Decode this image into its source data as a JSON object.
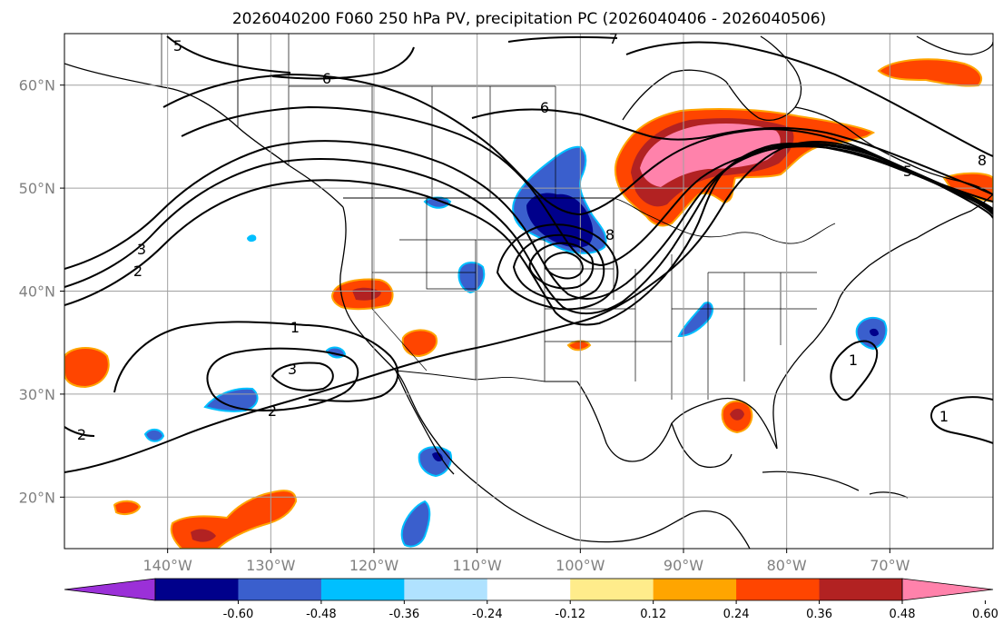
{
  "title": "2026040200 F060 250 hPa PV, precipitation PC (2026040406 - 2026040506)",
  "map": {
    "lon_range": [
      -150,
      -60
    ],
    "lat_range": [
      15,
      65
    ],
    "lon_ticks": [
      {
        "value": -140,
        "label": "140°W"
      },
      {
        "value": -130,
        "label": "130°W"
      },
      {
        "value": -120,
        "label": "120°W"
      },
      {
        "value": -110,
        "label": "110°W"
      },
      {
        "value": -100,
        "label": "100°W"
      },
      {
        "value": -90,
        "label": "90°W"
      },
      {
        "value": -80,
        "label": "80°W"
      },
      {
        "value": -70,
        "label": "70°W"
      }
    ],
    "lat_ticks": [
      {
        "value": 60,
        "label": "60°N"
      },
      {
        "value": 50,
        "label": "50°N"
      },
      {
        "value": 40,
        "label": "40°N"
      },
      {
        "value": 30,
        "label": "30°N"
      },
      {
        "value": 20,
        "label": "20°N"
      }
    ],
    "grid": true,
    "contour_labels": [
      "1",
      "2",
      "3",
      "5",
      "6",
      "7",
      "8"
    ]
  },
  "colorbar": {
    "colors": [
      "#9b30d8",
      "#00008b",
      "#3a5fcd",
      "#00bfff",
      "#b0e2ff",
      "#ffffff",
      "#ffec8b",
      "#ffa500",
      "#ff4500",
      "#b22222",
      "#ff82ab"
    ],
    "tick_labels": [
      "-0.60",
      "-0.48",
      "-0.36",
      "-0.24",
      "-0.12",
      "0.12",
      "0.24",
      "0.36",
      "0.48",
      "0.60"
    ],
    "extend": "both"
  }
}
